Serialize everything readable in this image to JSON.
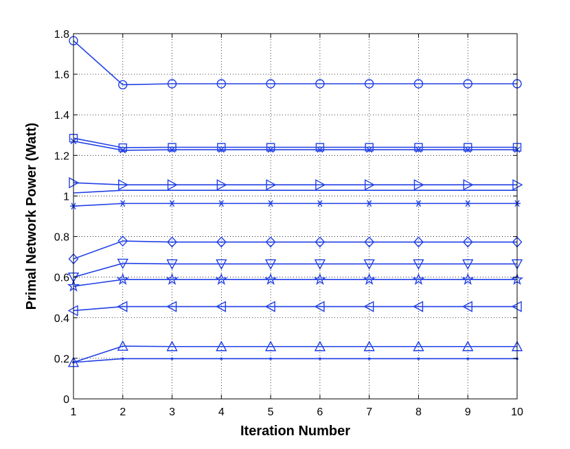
{
  "chart_data": {
    "type": "line",
    "xlabel": "Iteration Number",
    "ylabel": "Primal Network Power (Watt)",
    "xlim": [
      1,
      10
    ],
    "ylim": [
      0,
      1.8
    ],
    "xticks": [
      1,
      2,
      3,
      4,
      5,
      6,
      7,
      8,
      9,
      10
    ],
    "yticks": [
      0,
      0.2,
      0.4,
      0.6,
      0.8,
      1,
      1.2,
      1.4,
      1.6,
      1.8
    ],
    "ytick_labels": [
      "0",
      "0.2",
      "0.4",
      "0.6",
      "0.8",
      "1",
      "1.2",
      "1.4",
      "1.6",
      "1.8"
    ],
    "grid": true,
    "line_color": "#1f3fe6",
    "x": [
      1,
      2,
      3,
      4,
      5,
      6,
      7,
      8,
      9,
      10
    ],
    "series": [
      {
        "marker": "circle",
        "values": [
          1.765,
          1.548,
          1.553,
          1.553,
          1.553,
          1.553,
          1.553,
          1.553,
          1.553,
          1.553
        ]
      },
      {
        "marker": "square",
        "values": [
          1.285,
          1.238,
          1.24,
          1.24,
          1.24,
          1.24,
          1.24,
          1.24,
          1.24,
          1.24
        ]
      },
      {
        "marker": "x",
        "values": [
          1.27,
          1.225,
          1.228,
          1.228,
          1.228,
          1.228,
          1.228,
          1.228,
          1.228,
          1.228
        ]
      },
      {
        "marker": "triangle-right",
        "values": [
          1.065,
          1.055,
          1.055,
          1.055,
          1.055,
          1.055,
          1.055,
          1.055,
          1.055,
          1.055
        ]
      },
      {
        "marker": "none",
        "values": [
          1.015,
          1.028,
          1.028,
          1.028,
          1.028,
          1.028,
          1.028,
          1.028,
          1.028,
          1.028
        ]
      },
      {
        "marker": "asterisk",
        "values": [
          0.95,
          0.963,
          0.963,
          0.963,
          0.963,
          0.963,
          0.963,
          0.963,
          0.963,
          0.963
        ]
      },
      {
        "marker": "diamond",
        "values": [
          0.69,
          0.778,
          0.773,
          0.773,
          0.773,
          0.773,
          0.773,
          0.773,
          0.773,
          0.773
        ]
      },
      {
        "marker": "triangle-down",
        "values": [
          0.6,
          0.668,
          0.665,
          0.665,
          0.665,
          0.665,
          0.665,
          0.665,
          0.665,
          0.665
        ]
      },
      {
        "marker": "pentagram",
        "values": [
          0.555,
          0.588,
          0.588,
          0.588,
          0.588,
          0.588,
          0.588,
          0.588,
          0.588,
          0.588
        ]
      },
      {
        "marker": "triangle-left",
        "values": [
          0.435,
          0.455,
          0.455,
          0.455,
          0.455,
          0.455,
          0.455,
          0.455,
          0.455,
          0.455
        ]
      },
      {
        "marker": "triangle-up",
        "values": [
          0.18,
          0.26,
          0.258,
          0.258,
          0.258,
          0.258,
          0.258,
          0.258,
          0.258,
          0.258
        ]
      },
      {
        "marker": "point",
        "values": [
          0.18,
          0.198,
          0.198,
          0.198,
          0.198,
          0.198,
          0.198,
          0.198,
          0.198,
          0.198
        ]
      }
    ]
  }
}
